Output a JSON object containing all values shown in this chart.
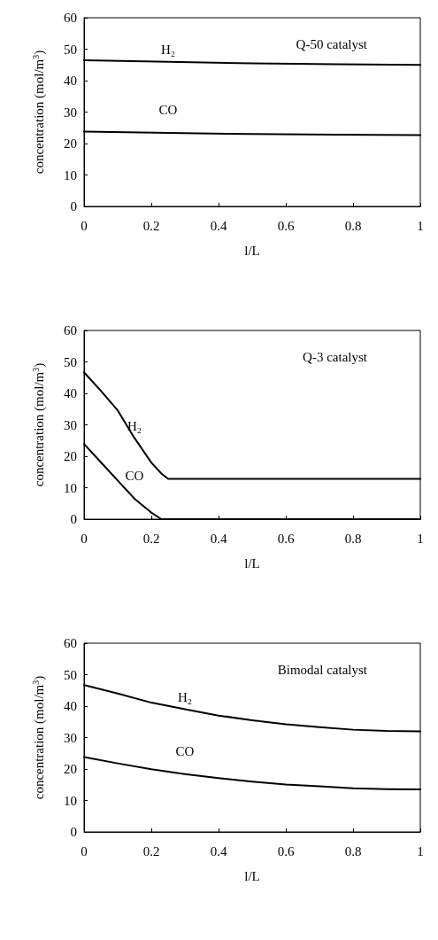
{
  "chart_data": [
    {
      "type": "line",
      "xlabel": "l/L",
      "ylabel": "concentration (mol/m$^{3}$)",
      "annotations": [
        "Q-50 catalyst"
      ],
      "xlim": [
        0,
        1
      ],
      "xticks": [
        0,
        0.2,
        0.4,
        0.6,
        0.8,
        1
      ],
      "ylim": [
        0,
        60
      ],
      "yticks": [
        0,
        10,
        20,
        30,
        40,
        50,
        60
      ],
      "grid": false,
      "marker": "none",
      "line_style": "solid",
      "x": [
        0,
        0.25,
        0.5,
        0.75,
        1
      ],
      "series": [
        {
          "name": "H₂",
          "color": "#000000",
          "values": [
            46.5,
            46,
            45.5,
            45.2,
            45
          ]
        },
        {
          "name": "CO",
          "color": "#000000",
          "values": [
            23.8,
            23.4,
            23.0,
            22.8,
            22.7
          ]
        }
      ]
    },
    {
      "type": "line",
      "xlabel": "l/L",
      "ylabel": "concentration (mol/m$^{3}$)",
      "annotations": [
        "Q-3 catalyst"
      ],
      "xlim": [
        0,
        1
      ],
      "xticks": [
        0,
        0.2,
        0.4,
        0.6,
        0.8,
        1
      ],
      "ylim": [
        0,
        60
      ],
      "yticks": [
        0,
        10,
        20,
        30,
        40,
        50,
        60
      ],
      "grid": false,
      "marker": "none",
      "line_style": "solid",
      "x": [
        0,
        0.05,
        0.1,
        0.15,
        0.2,
        0.23,
        0.25,
        0.3,
        0.4,
        0.6,
        0.8,
        1
      ],
      "series": [
        {
          "name": "H₂",
          "color": "#000000",
          "values": [
            46.7,
            40.8,
            34.6,
            25.8,
            18,
            14.5,
            12.8,
            12.8,
            12.8,
            12.8,
            12.8,
            12.8
          ]
        },
        {
          "name": "CO",
          "color": "#000000",
          "values": [
            23.9,
            18.1,
            12.3,
            6.5,
            2.1,
            0,
            0,
            0,
            0,
            0,
            0,
            0
          ]
        }
      ]
    },
    {
      "type": "line",
      "xlabel": "l/L",
      "ylabel": "concentration (mol/m$^{3}$)",
      "annotations": [
        "Bimodal catalyst"
      ],
      "xlim": [
        0,
        1
      ],
      "xticks": [
        0,
        0.2,
        0.4,
        0.6,
        0.8,
        1
      ],
      "ylim": [
        0,
        60
      ],
      "yticks": [
        0,
        10,
        20,
        30,
        40,
        50,
        60
      ],
      "grid": false,
      "marker": "none",
      "line_style": "solid",
      "x": [
        0,
        0.1,
        0.2,
        0.3,
        0.4,
        0.5,
        0.6,
        0.7,
        0.8,
        0.9,
        1
      ],
      "series": [
        {
          "name": "H₂",
          "color": "#000000",
          "values": [
            46.7,
            44,
            41.1,
            39,
            37,
            35.5,
            34.2,
            33.3,
            32.5,
            32.1,
            32.0
          ]
        },
        {
          "name": "CO",
          "color": "#000000",
          "values": [
            23.8,
            21.8,
            19.9,
            18.4,
            17.1,
            16,
            15.1,
            14.5,
            13.9,
            13.6,
            13.5
          ]
        }
      ]
    }
  ]
}
